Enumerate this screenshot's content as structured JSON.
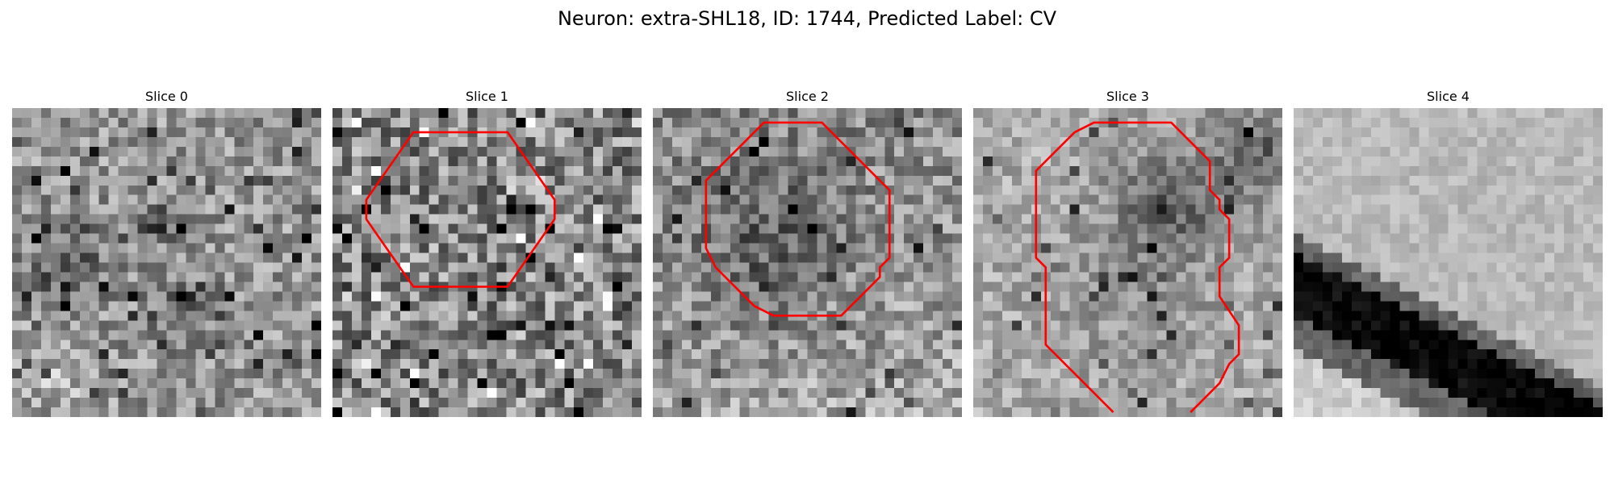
{
  "figure": {
    "title": "Neuron: extra-SHL18, ID: 1744, Predicted Label: CV",
    "contour_color": "#ff0000"
  },
  "panels": [
    {
      "title": "Slice 0",
      "tone": "noisy-mid-gray",
      "has_contour": false
    },
    {
      "title": "Slice 1",
      "tone": "noisy-mid-gray",
      "has_contour": true
    },
    {
      "title": "Slice 2",
      "tone": "noisy-mid-gray with dark center",
      "has_contour": true
    },
    {
      "title": "Slice 3",
      "tone": "light gray with dark upper-right",
      "has_contour": true
    },
    {
      "title": "Slice 4",
      "tone": "light upper-left, black diagonal band, light lower-right",
      "has_contour": false
    }
  ]
}
